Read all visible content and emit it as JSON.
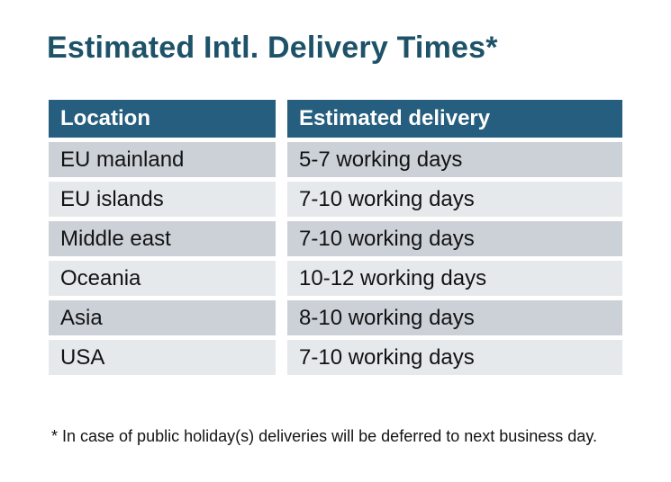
{
  "title": "Estimated Intl. Delivery Times*",
  "table": {
    "headers": [
      "Location",
      "Estimated delivery"
    ],
    "rows": [
      {
        "location": "EU mainland",
        "delivery": "5-7 working days"
      },
      {
        "location": "EU islands",
        "delivery": "7-10 working days"
      },
      {
        "location": "Middle east",
        "delivery": "7-10 working days"
      },
      {
        "location": "Oceania",
        "delivery": "10-12 working days"
      },
      {
        "location": "Asia",
        "delivery": "8-10 working days"
      },
      {
        "location": "USA",
        "delivery": "7-10 working days"
      }
    ]
  },
  "footnote": "* In case of public holiday(s) deliveries will be deferred to next business day.",
  "colors": {
    "background": "#ffffff",
    "title_text": "#1d5269",
    "header_bg": "#255e7e",
    "header_text": "#ffffff",
    "row_dark": "#ccd1d8",
    "row_light": "#e6e9ec",
    "body_text": "#131313"
  }
}
